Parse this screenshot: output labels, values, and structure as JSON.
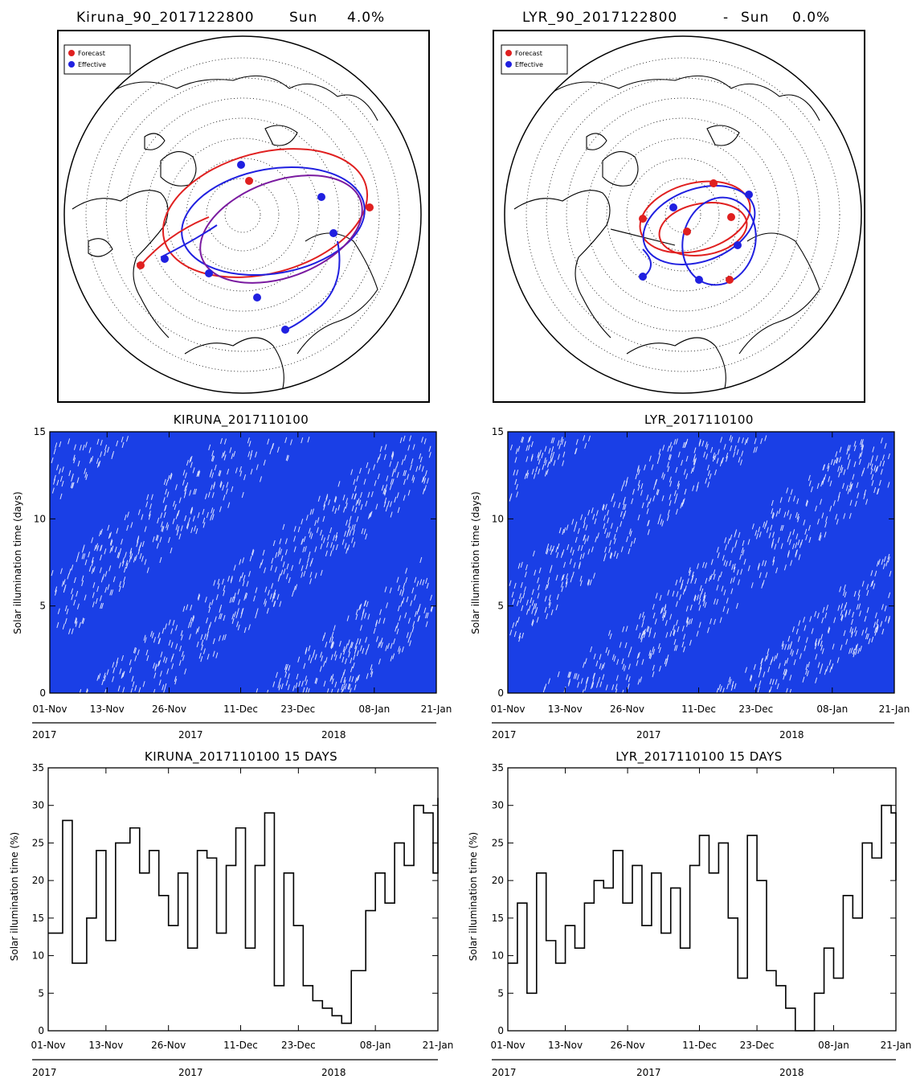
{
  "maps": [
    {
      "title": "Kiruna_90_2017122800",
      "sun_label": "Sun",
      "sun_value": "4.0%",
      "legend": [
        {
          "label": "Forecast",
          "color": "#e02020"
        },
        {
          "label": "Effective",
          "color": "#2020e0"
        }
      ]
    },
    {
      "title": "LYR_90_2017122800",
      "separator": "-",
      "sun_label": "Sun",
      "sun_value": "0.0%",
      "legend": [
        {
          "label": "Forecast",
          "color": "#e02020"
        },
        {
          "label": "Effective",
          "color": "#2020e0"
        }
      ]
    }
  ],
  "chart_data": [
    {
      "type": "scatter",
      "title": "KIRUNA_2017110100",
      "ylabel": "Solar illumination time (days)",
      "ylim": [
        0,
        15
      ],
      "yticks": [
        "0",
        "5",
        "10",
        "15"
      ],
      "xtick_labels": [
        "01-Nov",
        "13-Nov",
        "26-Nov",
        "11-Dec",
        "23-Dec",
        "08-Jan",
        "21-Jan"
      ],
      "xtick_days": [
        0,
        12,
        25,
        40,
        52,
        68,
        81
      ],
      "xlim_days": [
        0,
        81
      ],
      "year_labels": [
        "2017",
        "2017",
        "2018"
      ],
      "color": "#1a3fe6"
    },
    {
      "type": "scatter",
      "title": "LYR_2017110100",
      "ylabel": "Solar illumination time (days)",
      "ylim": [
        0,
        15
      ],
      "yticks": [
        "0",
        "5",
        "10",
        "15"
      ],
      "xtick_labels": [
        "01-Nov",
        "13-Nov",
        "26-Nov",
        "11-Dec",
        "23-Dec",
        "08-Jan",
        "21-Jan"
      ],
      "xtick_days": [
        0,
        12,
        25,
        40,
        52,
        68,
        81
      ],
      "xlim_days": [
        0,
        81
      ],
      "year_labels": [
        "2017",
        "2017",
        "2018"
      ],
      "color": "#1a3fe6"
    },
    {
      "type": "line",
      "title": "KIRUNA_2017110100 15 DAYS",
      "ylabel": "Solar illumination time (%)",
      "ylim": [
        0,
        35
      ],
      "yticks": [
        "0",
        "5",
        "10",
        "15",
        "20",
        "25",
        "30",
        "35"
      ],
      "xtick_labels": [
        "01-Nov",
        "13-Nov",
        "26-Nov",
        "11-Dec",
        "23-Dec",
        "08-Jan",
        "21-Jan"
      ],
      "xtick_days": [
        0,
        12,
        25,
        40,
        52,
        68,
        81
      ],
      "xlim_days": [
        0,
        81
      ],
      "year_labels": [
        "2017",
        "2017",
        "2018"
      ],
      "x": [
        0,
        3,
        5,
        8,
        10,
        12,
        14,
        17,
        19,
        21,
        23,
        25,
        27,
        29,
        31,
        33,
        35,
        37,
        39,
        41,
        43,
        45,
        47,
        49,
        51,
        53,
        55,
        57,
        59,
        61,
        63,
        66,
        68,
        70,
        72,
        74,
        76,
        78,
        80,
        81
      ],
      "y": [
        13,
        28,
        9,
        15,
        24,
        12,
        25,
        27,
        21,
        24,
        18,
        14,
        21,
        11,
        24,
        23,
        13,
        22,
        27,
        11,
        22,
        29,
        6,
        21,
        14,
        6,
        4,
        3,
        2,
        1,
        8,
        16,
        21,
        17,
        25,
        22,
        30,
        29,
        21,
        31
      ]
    },
    {
      "type": "line",
      "title": "LYR_2017110100 15 DAYS",
      "ylabel": "Solar illumination time (%)",
      "ylim": [
        0,
        35
      ],
      "yticks": [
        "0",
        "5",
        "10",
        "15",
        "20",
        "25",
        "30",
        "35"
      ],
      "xtick_labels": [
        "01-Nov",
        "13-Nov",
        "26-Nov",
        "11-Dec",
        "23-Dec",
        "08-Jan",
        "21-Jan"
      ],
      "xtick_days": [
        0,
        12,
        25,
        40,
        52,
        68,
        81
      ],
      "xlim_days": [
        0,
        81
      ],
      "year_labels": [
        "2017",
        "2017",
        "2018"
      ],
      "x": [
        0,
        2,
        4,
        6,
        8,
        10,
        12,
        14,
        16,
        18,
        20,
        22,
        24,
        26,
        28,
        30,
        32,
        34,
        36,
        38,
        40,
        42,
        44,
        46,
        48,
        50,
        52,
        54,
        56,
        58,
        60,
        62,
        64,
        66,
        68,
        70,
        72,
        74,
        76,
        78,
        80,
        81
      ],
      "y": [
        9,
        17,
        5,
        21,
        12,
        9,
        14,
        11,
        17,
        20,
        19,
        24,
        17,
        22,
        14,
        21,
        13,
        19,
        11,
        22,
        26,
        21,
        25,
        15,
        7,
        26,
        20,
        8,
        6,
        3,
        0,
        0,
        5,
        11,
        7,
        18,
        15,
        25,
        23,
        30,
        29,
        20
      ]
    }
  ]
}
